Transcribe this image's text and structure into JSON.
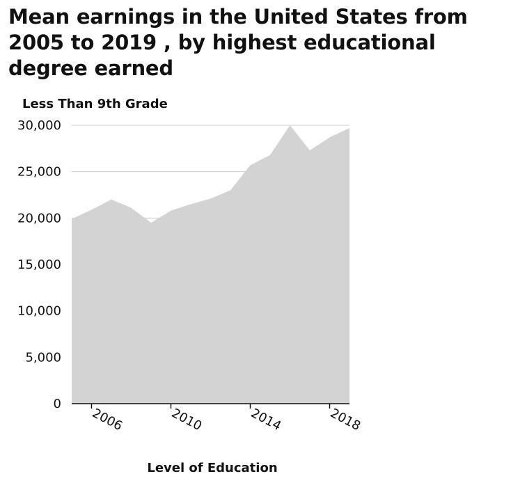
{
  "chart_data": {
    "type": "area",
    "title": "Mean earnings in the United States from 2005 to 2019 , by highest educational degree earned",
    "ylabel": "Less Than 9th Grade",
    "xlabel": "Level of Education",
    "x": [
      2005,
      2006,
      2007,
      2008,
      2009,
      2010,
      2011,
      2012,
      2013,
      2014,
      2015,
      2016,
      2017,
      2018,
      2019
    ],
    "values": [
      19900,
      20900,
      22000,
      21100,
      19500,
      20800,
      21500,
      22100,
      23000,
      25700,
      26800,
      30000,
      27300,
      28700,
      29700
    ],
    "xlim": [
      2005,
      2019
    ],
    "ylim": [
      0,
      30000
    ],
    "xticks": [
      2006,
      2010,
      2014,
      2018
    ],
    "xtick_labels": [
      "2006",
      "2010",
      "2014",
      "2018"
    ],
    "yticks": [
      0,
      5000,
      10000,
      15000,
      20000,
      25000,
      30000
    ],
    "ytick_labels": [
      "0",
      "5,000",
      "10,000",
      "15,000",
      "20,000",
      "25,000",
      "30,000"
    ],
    "grid": "horizontal",
    "fill_color": "#d3d3d3",
    "axis_color": "#111111",
    "grid_color": "#cccccc"
  }
}
